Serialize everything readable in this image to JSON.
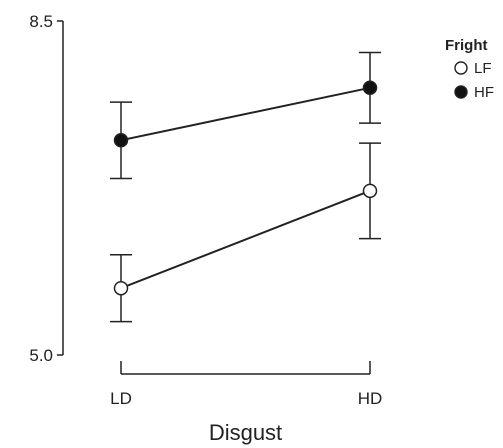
{
  "chart_data": {
    "type": "line",
    "title": "",
    "xlabel": "Disgust",
    "ylabel": "",
    "categories": [
      "LD",
      "HD"
    ],
    "ylim": [
      5.0,
      8.5
    ],
    "yticks": [
      "5.0",
      "8.5"
    ],
    "grid": false,
    "legend": {
      "title": "Fright",
      "placement": "top-right"
    },
    "series": [
      {
        "name": "LF",
        "marker": "open-circle",
        "values": [
          5.7,
          6.72
        ],
        "error": [
          0.35,
          0.5
        ]
      },
      {
        "name": "HF",
        "marker": "filled-circle",
        "values": [
          7.25,
          7.8
        ],
        "error": [
          0.4,
          0.37
        ]
      }
    ],
    "colors": {
      "line": "#222222",
      "filled_marker": "#111111",
      "open_marker": "#ffffff"
    }
  }
}
